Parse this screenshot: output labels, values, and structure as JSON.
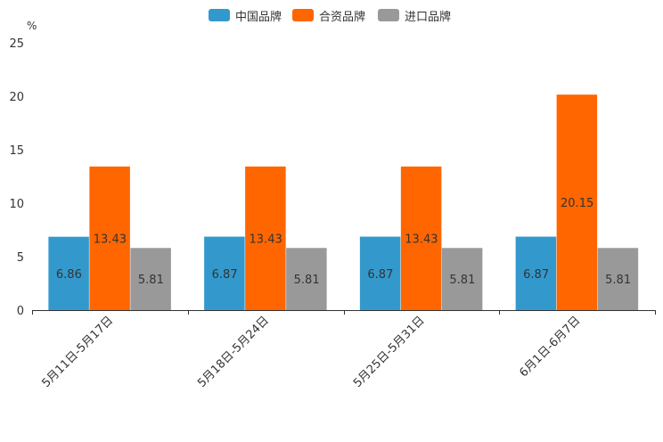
{
  "chart_data": {
    "type": "bar",
    "title": "",
    "xlabel": "",
    "ylabel": "%",
    "ylim": [
      0,
      25
    ],
    "yticks": [
      "0",
      "5",
      "10",
      "15",
      "20",
      "25"
    ],
    "grid": false,
    "legend_position": "top-center",
    "categories": [
      "5月11日-5月17日",
      "5月18日-5月24日",
      "5月25日-5月31日",
      "6月1日-6月7日"
    ],
    "series": [
      {
        "name": "中国品牌",
        "color": "#3399CC",
        "values": [
          6.86,
          6.87,
          6.87,
          6.87
        ],
        "labels": [
          "6.86",
          "6.87",
          "6.87",
          "6.87"
        ]
      },
      {
        "name": "合资品牌",
        "color": "#FF6600",
        "values": [
          13.43,
          13.43,
          13.43,
          20.15
        ],
        "labels": [
          "13.43",
          "13.43",
          "13.43",
          "20.15"
        ]
      },
      {
        "name": "进口品牌",
        "color": "#999999",
        "values": [
          5.81,
          5.81,
          5.81,
          5.81
        ],
        "labels": [
          "5.81",
          "5.81",
          "5.81",
          "5.81"
        ]
      }
    ]
  }
}
